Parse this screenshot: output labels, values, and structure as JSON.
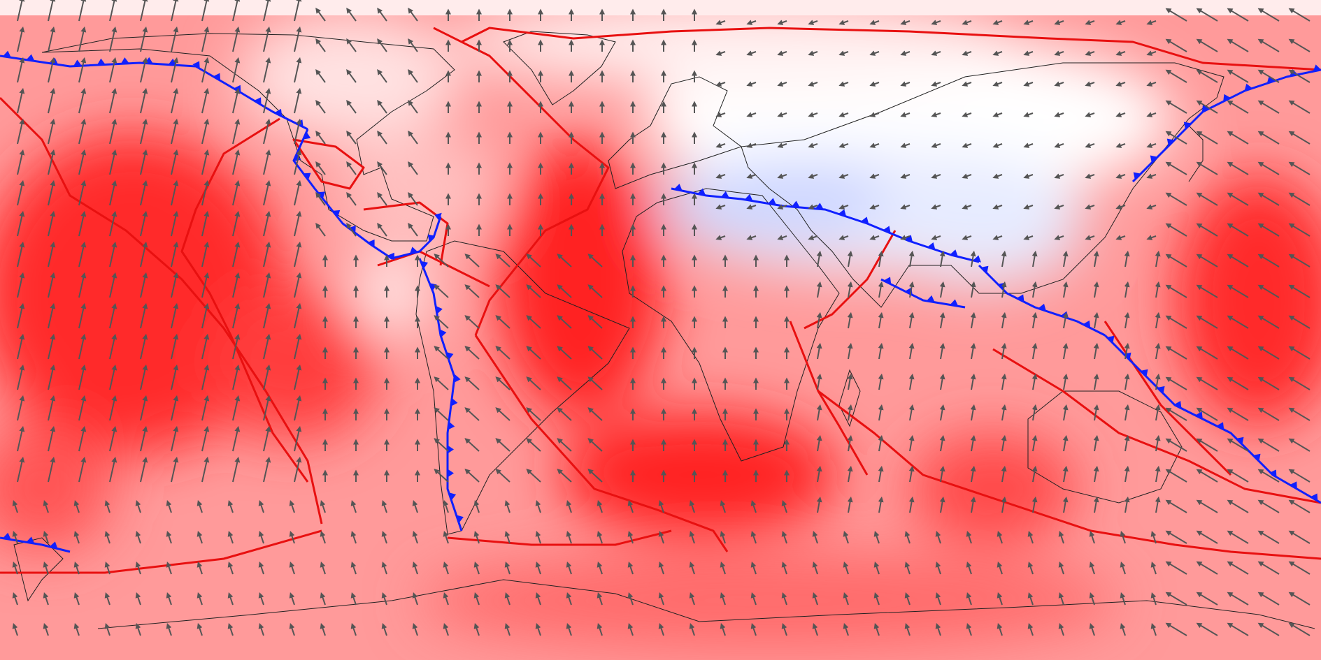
{
  "map": {
    "projection": "equirectangular",
    "longitude_range": [
      -180,
      180
    ],
    "latitude_range": [
      -90,
      90
    ],
    "center_longitude": 0,
    "labels": [],
    "colors": {
      "velocity_field_strong": "#ff1a1a",
      "velocity_field_mid": "#ff8080",
      "velocity_field_weak": "#ffd6d6",
      "velocity_field_neutral": "#ffffff",
      "velocity_field_negative": "#ccd6ff",
      "ridge_boundary": "#e81010",
      "subduction_boundary": "#1020ff",
      "coastline": "#202020",
      "velocity_arrow": "#555555"
    },
    "layers": [
      "velocity-magnitude-field",
      "plate-boundaries-ridge",
      "plate-boundaries-subduction",
      "coastlines",
      "velocity-arrows"
    ]
  }
}
